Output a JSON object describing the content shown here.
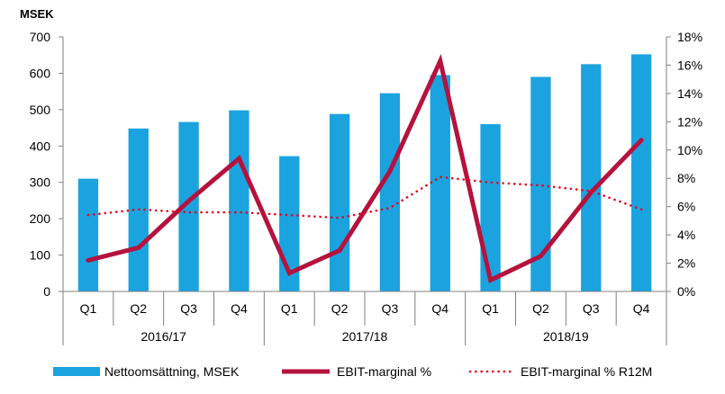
{
  "chart_data": {
    "type": "bar",
    "unit_label": "MSEK",
    "categories": [
      "Q1",
      "Q2",
      "Q3",
      "Q4",
      "Q1",
      "Q2",
      "Q3",
      "Q4",
      "Q1",
      "Q2",
      "Q3",
      "Q4"
    ],
    "groups": [
      {
        "label": "2016/17",
        "span": 4
      },
      {
        "label": "2017/18",
        "span": 4
      },
      {
        "label": "2018/19",
        "span": 4
      }
    ],
    "ylim": [
      0,
      700
    ],
    "y_ticks": [
      0,
      100,
      200,
      300,
      400,
      500,
      600,
      700
    ],
    "y2lim": [
      0,
      18
    ],
    "y2_ticks": [
      "0%",
      "2%",
      "4%",
      "6%",
      "8%",
      "10%",
      "12%",
      "14%",
      "16%",
      "18%"
    ],
    "series": [
      {
        "name": "Nettoomsättning, MSEK",
        "kind": "bar",
        "axis": "left",
        "color": "#1aa3df",
        "values": [
          310,
          448,
          466,
          498,
          372,
          488,
          545,
          595,
          460,
          590,
          625,
          652
        ]
      },
      {
        "name": "EBIT-marginal %",
        "kind": "line",
        "axis": "right",
        "color": "#b5123e",
        "values": [
          2.2,
          3.1,
          6.4,
          9.4,
          1.3,
          2.9,
          8.5,
          16.3,
          0.8,
          2.5,
          7.0,
          10.7
        ]
      },
      {
        "name": "EBIT-marginal % R12M",
        "kind": "dotted-line",
        "axis": "right",
        "color": "#e8001c",
        "values": [
          5.4,
          5.8,
          5.6,
          5.6,
          5.4,
          5.2,
          5.9,
          8.1,
          7.7,
          7.5,
          7.1,
          5.8
        ]
      }
    ],
    "grid": false,
    "legend_position": "bottom"
  }
}
